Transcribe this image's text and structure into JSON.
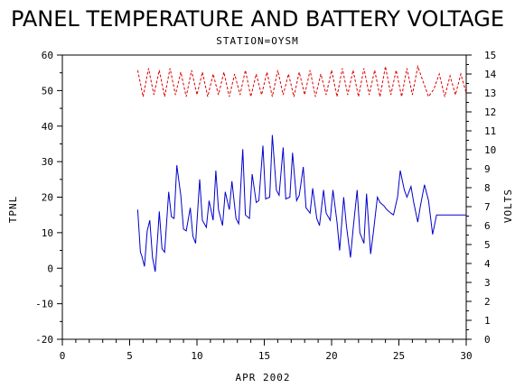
{
  "chart_data": {
    "type": "line",
    "title": "PANEL TEMPERATURE AND BATTERY VOLTAGE",
    "subtitle": "STATION=OYSM",
    "xlabel": "APR 2002",
    "ylabel_left": "TPNL",
    "ylabel_right": "VOLTS",
    "xlim": [
      0,
      30
    ],
    "ylim_left": [
      -20,
      60
    ],
    "ylim_right": [
      0,
      15
    ],
    "x_ticks": [
      "0",
      "5",
      "10",
      "15",
      "20",
      "25",
      "30"
    ],
    "y_left_ticks": [
      "-20",
      "-10",
      "0",
      "10",
      "20",
      "30",
      "40",
      "50",
      "60"
    ],
    "y_right_ticks": [
      "0",
      "1",
      "2",
      "3",
      "4",
      "5",
      "6",
      "7",
      "8",
      "9",
      "10",
      "11",
      "12",
      "13",
      "14",
      "15"
    ],
    "grid": false,
    "series": [
      {
        "name": "",
        "axis": "left",
        "color": "#0000cc",
        "style": "solid",
        "x": [
          5.6,
          5.8,
          5.9,
          6.1,
          6.3,
          6.5,
          6.7,
          6.9,
          7.1,
          7.2,
          7.4,
          7.6,
          7.9,
          8.1,
          8.3,
          8.5,
          8.8,
          9.0,
          9.2,
          9.5,
          9.7,
          9.9,
          10.2,
          10.4,
          10.7,
          10.9,
          11.2,
          11.4,
          11.6,
          11.9,
          12.1,
          12.4,
          12.6,
          12.9,
          13.1,
          13.4,
          13.6,
          13.9,
          14.1,
          14.4,
          14.6,
          14.9,
          15.1,
          15.4,
          15.6,
          15.9,
          16.1,
          16.4,
          16.6,
          16.9,
          17.1,
          17.4,
          17.6,
          17.9,
          18.1,
          18.4,
          18.6,
          18.9,
          19.1,
          19.4,
          19.6,
          19.9,
          20.1,
          20.4,
          20.6,
          20.9,
          21.1,
          21.4,
          21.6,
          21.9,
          22.1,
          22.4,
          22.6,
          22.9,
          23.1,
          23.4,
          23.6,
          23.9,
          24.1,
          24.4,
          24.6,
          24.9,
          25.1,
          25.4,
          25.6,
          25.9,
          26.1,
          26.4,
          26.6,
          26.9,
          27.2,
          27.5,
          27.8,
          28.1,
          28.4,
          28.6,
          28.9,
          29.1,
          29.3,
          29.6,
          29.8,
          30.0
        ],
        "y": [
          16.5,
          4.5,
          3.5,
          0.5,
          10.5,
          13.5,
          3.0,
          -1.0,
          10.0,
          16.0,
          5.5,
          4.5,
          21.5,
          14.5,
          14.0,
          29.0,
          20.5,
          11.0,
          10.5,
          17.0,
          9.0,
          7.0,
          25.0,
          13.5,
          11.5,
          19.0,
          13.5,
          27.5,
          16.5,
          12.0,
          21.5,
          16.5,
          24.5,
          14.0,
          12.5,
          33.5,
          15.0,
          14.0,
          26.5,
          18.5,
          19.0,
          34.5,
          19.5,
          20.0,
          37.5,
          22.0,
          20.5,
          34.0,
          19.5,
          20.0,
          32.5,
          19.0,
          20.5,
          28.5,
          17.0,
          15.5,
          22.5,
          14.0,
          12.0,
          22.0,
          15.5,
          13.5,
          22.0,
          13.0,
          5.0,
          20.0,
          12.0,
          3.0,
          11.0,
          22.0,
          10.0,
          7.0,
          21.0,
          4.0,
          10.0,
          20.0,
          18.5,
          17.5,
          16.5,
          15.5,
          15.0,
          20.0,
          27.5,
          22.0,
          20.0,
          23.0,
          18.5,
          13.0,
          17.5,
          23.5,
          19.0,
          9.5,
          15.0,
          15.0,
          15.0,
          15.0,
          15.0,
          15.0,
          15.0,
          15.0,
          15.0,
          15.0
        ],
        "note": ""
      },
      {
        "name": "",
        "axis": "right",
        "color": "#dd0000",
        "style": "dashed",
        "x": [
          5.6,
          6.0,
          6.4,
          6.8,
          7.2,
          7.6,
          8.0,
          8.4,
          8.8,
          9.2,
          9.6,
          10.0,
          10.4,
          10.8,
          11.2,
          11.6,
          12.0,
          12.4,
          12.8,
          13.2,
          13.6,
          14.0,
          14.4,
          14.8,
          15.2,
          15.6,
          16.0,
          16.4,
          16.8,
          17.2,
          17.6,
          18.0,
          18.4,
          18.8,
          19.2,
          19.6,
          20.0,
          20.4,
          20.8,
          21.2,
          21.6,
          22.0,
          22.4,
          22.8,
          23.2,
          23.6,
          24.0,
          24.4,
          24.8,
          25.2,
          25.6,
          26.0,
          26.4,
          26.8,
          27.2,
          27.6,
          28.0,
          28.4,
          28.8,
          29.2,
          29.6,
          30.0
        ],
        "y": [
          14.2,
          12.8,
          14.3,
          12.9,
          14.2,
          12.8,
          14.3,
          12.9,
          14.1,
          12.8,
          14.2,
          12.9,
          14.1,
          12.8,
          14.0,
          12.9,
          14.1,
          12.8,
          14.0,
          12.9,
          14.2,
          12.8,
          14.0,
          12.9,
          14.1,
          12.8,
          14.2,
          12.9,
          14.0,
          12.8,
          14.1,
          12.9,
          14.2,
          12.8,
          14.0,
          12.9,
          14.2,
          12.8,
          14.3,
          12.9,
          14.2,
          12.8,
          14.3,
          12.9,
          14.2,
          12.8,
          14.4,
          12.9,
          14.2,
          12.8,
          14.3,
          12.9,
          14.4,
          13.6,
          12.8,
          13.2,
          14.0,
          12.8,
          13.9,
          12.9,
          14.0,
          13.0
        ]
      }
    ]
  }
}
